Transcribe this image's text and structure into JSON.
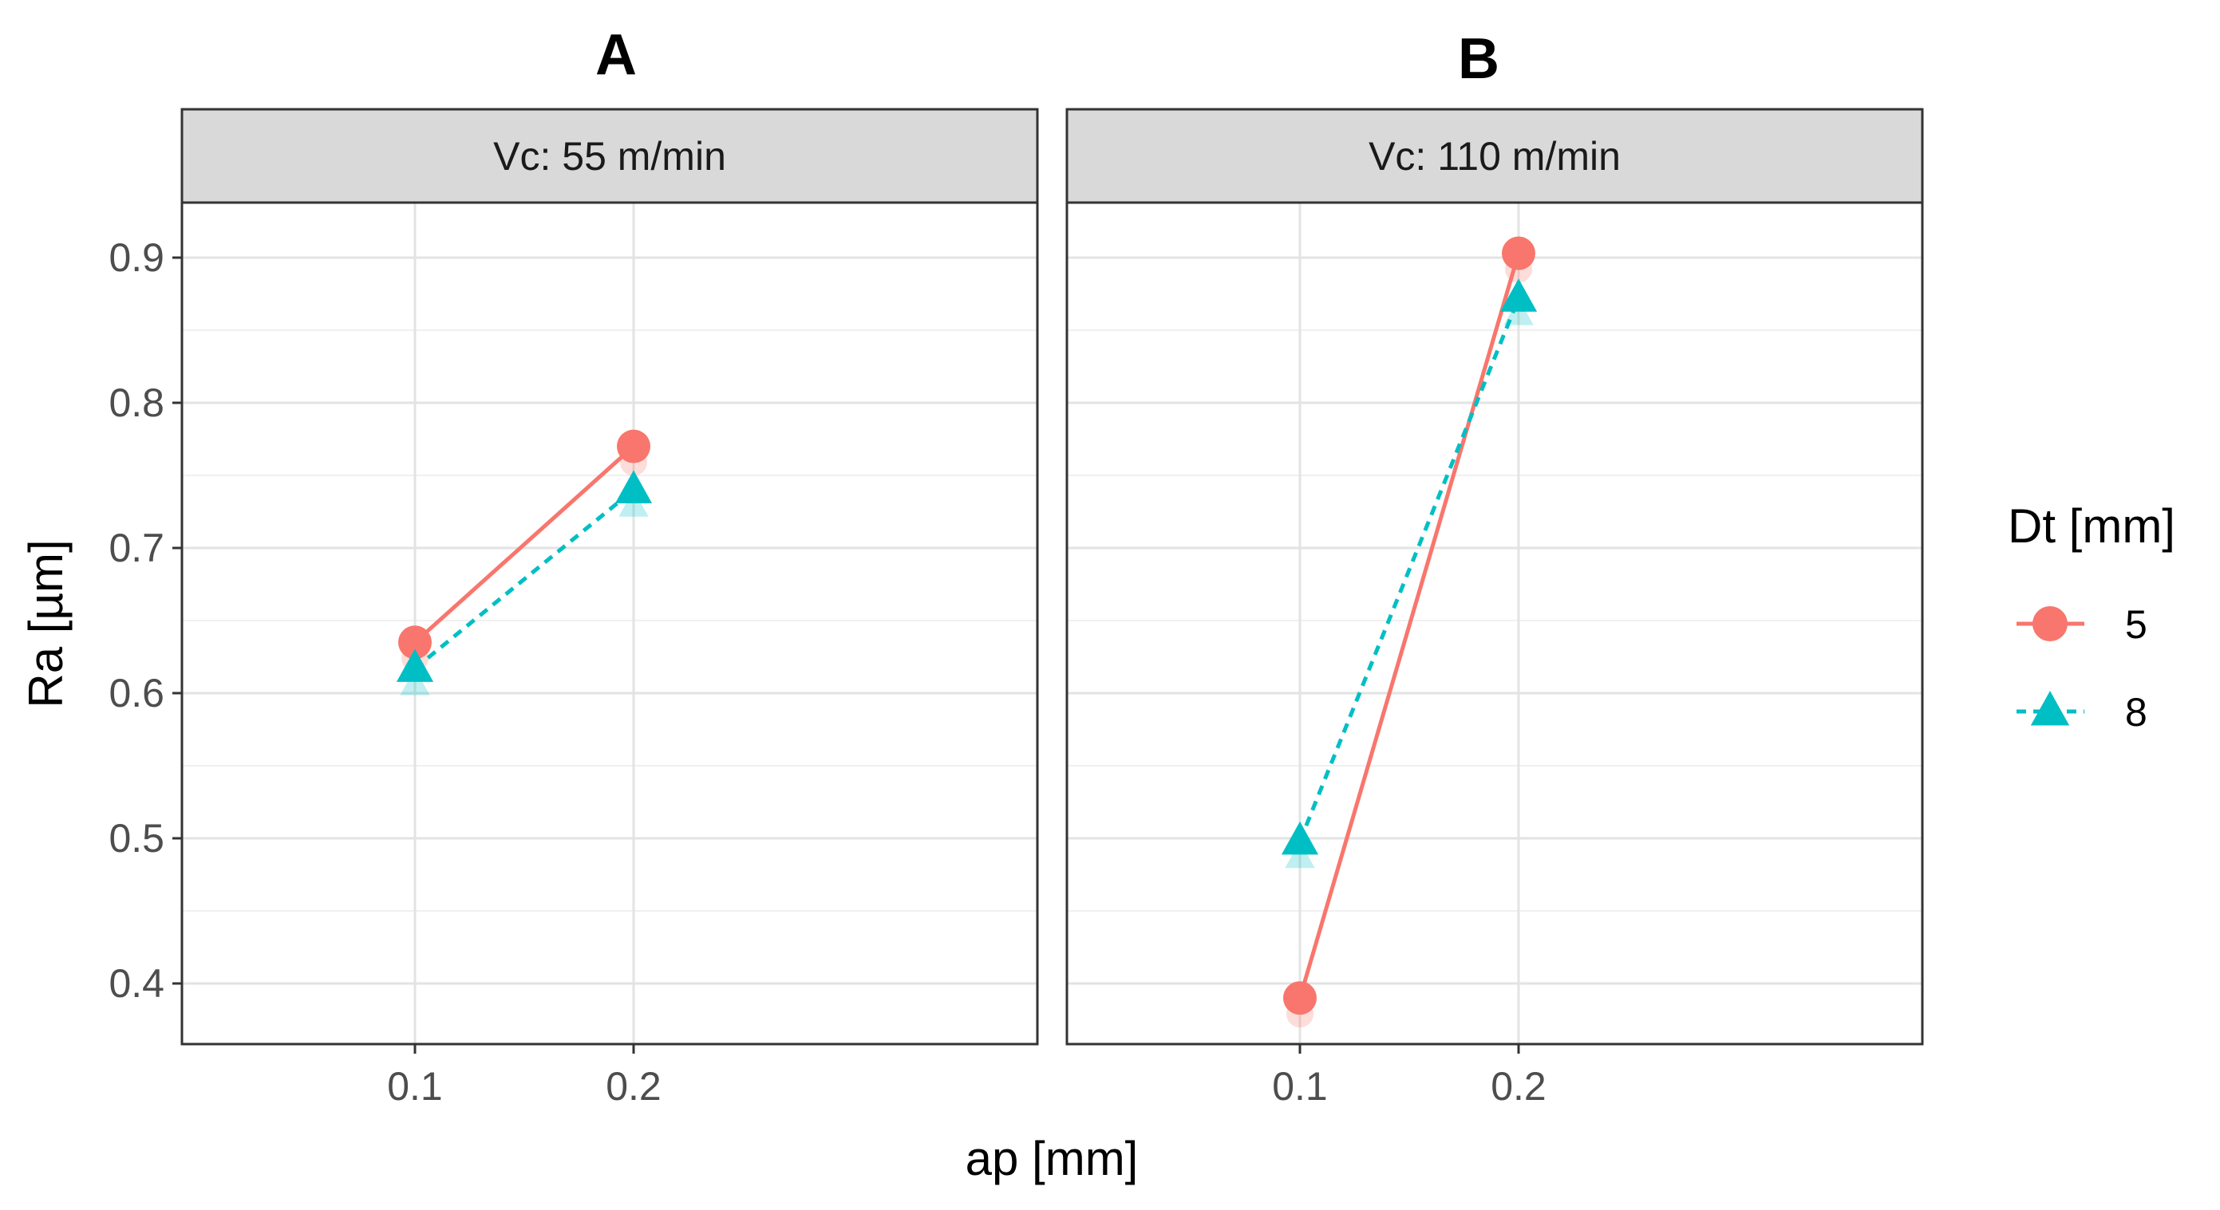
{
  "chart_data": {
    "type": "line",
    "xlabel": "ap [mm]",
    "ylabel": "Ra [µm]",
    "ylim": [
      0.35,
      0.96
    ],
    "yticks": [
      "0.4",
      "0.5",
      "0.6",
      "0.7",
      "0.8",
      "0.9"
    ],
    "x": [
      "0.1",
      "0.2"
    ],
    "legend": {
      "title": "Dt [mm]",
      "placement": "right",
      "entries": [
        {
          "label": "5",
          "color": "#F8766D",
          "marker": "circle",
          "line": "solid"
        },
        {
          "label": "8",
          "color": "#00BFC4",
          "marker": "triangle",
          "line": "dashed"
        }
      ]
    },
    "grid": true,
    "panels": [
      {
        "letter": "A",
        "strip": "Vc: 55 m/min",
        "series": [
          {
            "name": "5",
            "values": [
              0.635,
              0.77
            ]
          },
          {
            "name": "8",
            "values": [
              0.617,
              0.74
            ]
          }
        ]
      },
      {
        "letter": "B",
        "strip": "Vc: 110 m/min",
        "series": [
          {
            "name": "5",
            "values": [
              0.39,
              0.903
            ]
          },
          {
            "name": "8",
            "values": [
              0.498,
              0.872
            ]
          }
        ]
      }
    ]
  }
}
